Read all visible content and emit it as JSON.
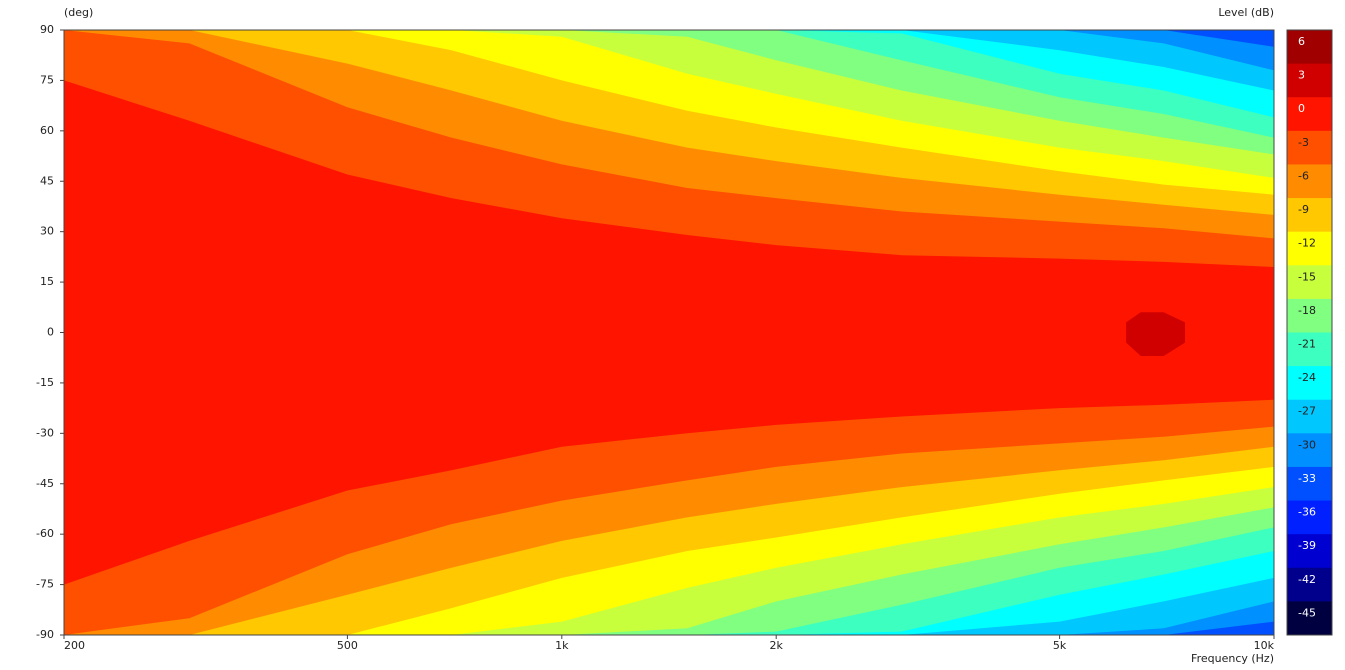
{
  "chart_data": {
    "type": "contour",
    "y_label": "(deg)",
    "x_label": "Frequency  (Hz)",
    "colorbar_label": "Level  (dB)",
    "log_x": true,
    "xlim": [
      200,
      10000
    ],
    "ylim": [
      -90,
      90
    ],
    "xticks": [
      200,
      500,
      {
        "value": 1000,
        "label": "1k"
      },
      {
        "value": 2000,
        "label": "2k"
      },
      {
        "value": 5000,
        "label": "5k"
      },
      {
        "value": 10000,
        "label": "10k"
      }
    ],
    "yticks": [
      90,
      75,
      60,
      45,
      30,
      15,
      0,
      -15,
      -30,
      -45,
      -60,
      -75,
      -90
    ],
    "colorbar": {
      "levels": [
        6,
        3,
        0,
        -3,
        -6,
        -9,
        -12,
        -15,
        -18,
        -21,
        -24,
        -27,
        -30,
        -33,
        -36,
        -39,
        -42,
        -45
      ],
      "colors": [
        "#a00000",
        "#d00000",
        "#ff1400",
        "#ff5000",
        "#ff8c00",
        "#ffc800",
        "#ffff00",
        "#c8ff3c",
        "#80ff80",
        "#3cffc0",
        "#00ffff",
        "#00c8ff",
        "#0090ff",
        "#0050ff",
        "#0020ff",
        "#0000d0",
        "#00008c",
        "#000040"
      ]
    },
    "background_level": -33,
    "x": [
      200,
      300,
      500,
      700,
      1000,
      1500,
      2000,
      3000,
      5000,
      7000,
      10000
    ],
    "contours": [
      {
        "level": -30,
        "upper": [
          90,
          90,
          90,
          90,
          90,
          90,
          90,
          90,
          90,
          90,
          85
        ],
        "lower": [
          -90,
          -90,
          -90,
          -90,
          -90,
          -90,
          -90,
          -90,
          -90,
          -90,
          -86
        ]
      },
      {
        "level": -27,
        "upper": [
          90,
          90,
          90,
          90,
          90,
          90,
          90,
          90,
          90,
          86,
          78
        ],
        "lower": [
          -90,
          -90,
          -90,
          -90,
          -90,
          -90,
          -90,
          -90,
          -90,
          -88,
          -80
        ]
      },
      {
        "level": -24,
        "upper": [
          90,
          90,
          90,
          90,
          90,
          90,
          90,
          90,
          84,
          79,
          72
        ],
        "lower": [
          -90,
          -90,
          -90,
          -90,
          -90,
          -90,
          -90,
          -90,
          -86,
          -80,
          -73
        ]
      },
      {
        "level": -21,
        "upper": [
          90,
          90,
          90,
          90,
          90,
          90,
          90,
          89,
          77,
          72,
          64
        ],
        "lower": [
          -90,
          -90,
          -90,
          -90,
          -90,
          -90,
          -90,
          -89,
          -78,
          -72,
          -65
        ]
      },
      {
        "level": -18,
        "upper": [
          90,
          90,
          90,
          90,
          90,
          90,
          90,
          81,
          70,
          65,
          58
        ],
        "lower": [
          -90,
          -90,
          -90,
          -90,
          -90,
          -90,
          -89,
          -81,
          -70,
          -65,
          -58
        ]
      },
      {
        "level": -15,
        "upper": [
          90,
          90,
          90,
          90,
          90,
          88,
          81,
          72,
          63,
          58,
          53
        ],
        "lower": [
          -90,
          -90,
          -90,
          -90,
          -90,
          -88,
          -80,
          -72,
          -63,
          -58,
          -52
        ]
      },
      {
        "level": -12,
        "upper": [
          90,
          90,
          90,
          90,
          88,
          77,
          71,
          63,
          55,
          51,
          46
        ],
        "lower": [
          -90,
          -90,
          -90,
          -90,
          -86,
          -76,
          -70,
          -63,
          -55,
          -51,
          -46
        ]
      },
      {
        "level": -9,
        "upper": [
          90,
          90,
          90,
          84,
          75,
          66,
          61,
          55,
          48,
          44,
          41
        ],
        "lower": [
          -90,
          -90,
          -90,
          -82,
          -73,
          -65,
          -61,
          -55,
          -48,
          -44,
          -40
        ]
      },
      {
        "level": -6,
        "upper": [
          90,
          90,
          80,
          72,
          63,
          55,
          51,
          46,
          41,
          38,
          35
        ],
        "lower": [
          -90,
          -90,
          -78,
          -70,
          -62,
          -55,
          -51,
          -46,
          -41,
          -38,
          -34
        ]
      },
      {
        "level": -3,
        "upper": [
          90,
          86,
          67,
          58,
          50,
          43,
          40,
          36,
          33,
          31,
          28
        ],
        "lower": [
          -90,
          -85,
          -66,
          -57,
          -50,
          -44,
          -40,
          -36,
          -33,
          -31,
          -28
        ]
      },
      {
        "level": 0,
        "upper": [
          75,
          63,
          47,
          40,
          34,
          29,
          26,
          23,
          22,
          21,
          19.5
        ],
        "lower": [
          -75,
          -62,
          -47,
          -41,
          -34,
          -30,
          -27.5,
          -25,
          -22.5,
          -21.5,
          -20
        ]
      },
      {
        "level": 3,
        "x": [
          6200,
          6500,
          7000,
          7500
        ],
        "upper": [
          3,
          6,
          6,
          3
        ],
        "lower": [
          -3,
          -7,
          -7,
          -3
        ]
      }
    ]
  }
}
